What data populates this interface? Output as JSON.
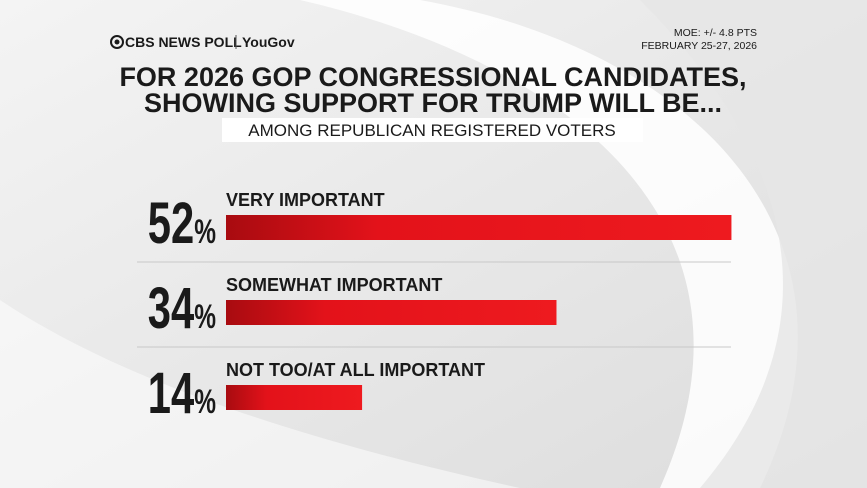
{
  "chart_data": {
    "type": "bar",
    "source": [
      "CBS NEWS POLL",
      "YouGov"
    ],
    "notes": [
      "MOE: +/- 4.8 PTS",
      "FEBRUARY 25-27, 2026"
    ],
    "title": [
      "FOR 2026 GOP CONGRESSIONAL CANDIDATES,",
      "SHOWING SUPPORT FOR TRUMP WILL BE..."
    ],
    "subtitle": "AMONG REPUBLICAN REGISTERED VOTERS",
    "categories": [
      "VERY IMPORTANT",
      "SOMEWHAT IMPORTANT",
      "NOT TOO/AT ALL IMPORTANT"
    ],
    "values": [
      52,
      34,
      14
    ],
    "value_labels": [
      "52%",
      "34%",
      "14%"
    ],
    "color": "#e3121a"
  }
}
